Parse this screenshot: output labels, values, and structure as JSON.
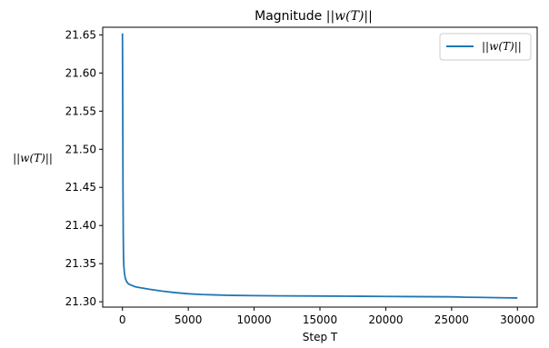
{
  "chart_data": {
    "type": "line",
    "title_prefix": "Magnitude ",
    "title_math": "||w(T)||",
    "xlabel": "Step T",
    "ylabel": "||w(T)||",
    "xlim": [
      -1500,
      31500
    ],
    "ylim": [
      21.293,
      21.66
    ],
    "xticks": [
      0,
      5000,
      10000,
      15000,
      20000,
      25000,
      30000
    ],
    "xtick_labels": [
      "0",
      "5000",
      "10000",
      "15000",
      "20000",
      "25000",
      "30000"
    ],
    "yticks": [
      21.3,
      21.35,
      21.4,
      21.45,
      21.5,
      21.55,
      21.6,
      21.65
    ],
    "ytick_labels": [
      "21.30",
      "21.35",
      "21.40",
      "21.45",
      "21.50",
      "21.55",
      "21.60",
      "21.65"
    ],
    "grid": false,
    "legend_position": "top-right",
    "series": [
      {
        "name": "||w(T)||",
        "color": "#1f77b4",
        "x": [
          0,
          20,
          40,
          60,
          80,
          100,
          150,
          200,
          300,
          400,
          500,
          700,
          1000,
          1500,
          2000,
          3000,
          4000,
          5000,
          6000,
          7000,
          8000,
          10000,
          12000,
          15000,
          18000,
          20000,
          22000,
          25000,
          26000,
          27000,
          28000,
          29000,
          30000
        ],
        "y": [
          21.652,
          21.56,
          21.45,
          21.39,
          21.36,
          21.348,
          21.338,
          21.332,
          21.327,
          21.3245,
          21.323,
          21.3215,
          21.3195,
          21.318,
          21.3165,
          21.314,
          21.312,
          21.3105,
          21.3095,
          21.309,
          21.3085,
          21.308,
          21.3077,
          21.3075,
          21.3072,
          21.307,
          21.3068,
          21.3065,
          21.306,
          21.3058,
          21.3055,
          21.3052,
          21.305
        ]
      }
    ]
  }
}
